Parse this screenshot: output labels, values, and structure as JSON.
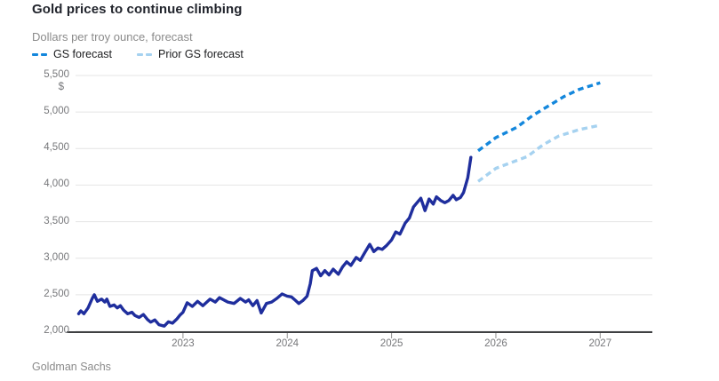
{
  "header": {
    "title": "Gold prices to continue climbing",
    "subtitle": "Dollars per troy ounce, forecast"
  },
  "legend": [
    {
      "label": "GS forecast",
      "color": "#1487dc"
    },
    {
      "label": "Prior GS forecast",
      "color": "#a6d2f0"
    }
  ],
  "footer": {
    "source": "Goldman Sachs"
  },
  "colors": {
    "historical_line": "#1f2e9d",
    "gs_forecast_line": "#1487dc",
    "prior_forecast_line": "#a6d2f0",
    "gridline": "#e4e4e4",
    "axis_line": "#3f4042",
    "axis_text": "#76777a"
  },
  "chart_data": {
    "type": "line",
    "title": "Gold prices to continue climbing",
    "subtitle": "Dollars per troy ounce, forecast",
    "unit_label": "$",
    "xlabel": "",
    "ylabel": "Dollars per troy ounce",
    "ylim": [
      2000,
      5500
    ],
    "xlim": [
      2021.97,
      2027.5
    ],
    "grid": "horizontal",
    "legend_position": "top-left",
    "y_ticks": [
      {
        "value": 5500,
        "label": "5,500"
      },
      {
        "value": 5000,
        "label": "5,000"
      },
      {
        "value": 4500,
        "label": "4,500"
      },
      {
        "value": 4000,
        "label": "4,000"
      },
      {
        "value": 3500,
        "label": "3,500"
      },
      {
        "value": 3000,
        "label": "3,000"
      },
      {
        "value": 2500,
        "label": "2,500"
      },
      {
        "value": 2000,
        "label": "2,000"
      }
    ],
    "x_ticks": [
      {
        "value": 2023,
        "label": "2023"
      },
      {
        "value": 2024,
        "label": "2024"
      },
      {
        "value": 2025,
        "label": "2025"
      },
      {
        "value": 2026,
        "label": "2026"
      },
      {
        "value": 2027,
        "label": "2027"
      }
    ],
    "series": [
      {
        "name": "Gold price",
        "style": "solid",
        "color": "#1f2e9d",
        "points": [
          [
            2022.0,
            2240
          ],
          [
            2022.02,
            2280
          ],
          [
            2022.05,
            2240
          ],
          [
            2022.09,
            2320
          ],
          [
            2022.13,
            2450
          ],
          [
            2022.15,
            2500
          ],
          [
            2022.18,
            2410
          ],
          [
            2022.22,
            2440
          ],
          [
            2022.25,
            2400
          ],
          [
            2022.27,
            2440
          ],
          [
            2022.3,
            2340
          ],
          [
            2022.34,
            2360
          ],
          [
            2022.37,
            2320
          ],
          [
            2022.4,
            2350
          ],
          [
            2022.43,
            2290
          ],
          [
            2022.47,
            2240
          ],
          [
            2022.51,
            2260
          ],
          [
            2022.54,
            2215
          ],
          [
            2022.58,
            2190
          ],
          [
            2022.62,
            2230
          ],
          [
            2022.66,
            2160
          ],
          [
            2022.69,
            2125
          ],
          [
            2022.73,
            2155
          ],
          [
            2022.77,
            2090
          ],
          [
            2022.82,
            2070
          ],
          [
            2022.86,
            2130
          ],
          [
            2022.9,
            2110
          ],
          [
            2022.94,
            2165
          ],
          [
            2022.97,
            2220
          ],
          [
            2023.0,
            2260
          ],
          [
            2023.04,
            2390
          ],
          [
            2023.09,
            2340
          ],
          [
            2023.14,
            2410
          ],
          [
            2023.19,
            2350
          ],
          [
            2023.26,
            2440
          ],
          [
            2023.31,
            2400
          ],
          [
            2023.35,
            2460
          ],
          [
            2023.43,
            2400
          ],
          [
            2023.49,
            2380
          ],
          [
            2023.55,
            2450
          ],
          [
            2023.6,
            2400
          ],
          [
            2023.63,
            2430
          ],
          [
            2023.67,
            2350
          ],
          [
            2023.71,
            2420
          ],
          [
            2023.75,
            2250
          ],
          [
            2023.8,
            2380
          ],
          [
            2023.85,
            2400
          ],
          [
            2023.9,
            2450
          ],
          [
            2023.95,
            2510
          ],
          [
            2024.0,
            2480
          ],
          [
            2024.04,
            2470
          ],
          [
            2024.08,
            2420
          ],
          [
            2024.11,
            2380
          ],
          [
            2024.15,
            2420
          ],
          [
            2024.19,
            2480
          ],
          [
            2024.22,
            2650
          ],
          [
            2024.24,
            2830
          ],
          [
            2024.28,
            2860
          ],
          [
            2024.32,
            2760
          ],
          [
            2024.36,
            2830
          ],
          [
            2024.4,
            2770
          ],
          [
            2024.44,
            2850
          ],
          [
            2024.49,
            2780
          ],
          [
            2024.53,
            2880
          ],
          [
            2024.57,
            2950
          ],
          [
            2024.61,
            2900
          ],
          [
            2024.66,
            3010
          ],
          [
            2024.7,
            2970
          ],
          [
            2024.74,
            3070
          ],
          [
            2024.79,
            3190
          ],
          [
            2024.83,
            3090
          ],
          [
            2024.87,
            3140
          ],
          [
            2024.91,
            3120
          ],
          [
            2024.95,
            3170
          ],
          [
            2025.0,
            3250
          ],
          [
            2025.04,
            3360
          ],
          [
            2025.08,
            3330
          ],
          [
            2025.13,
            3480
          ],
          [
            2025.17,
            3550
          ],
          [
            2025.21,
            3700
          ],
          [
            2025.25,
            3770
          ],
          [
            2025.28,
            3820
          ],
          [
            2025.32,
            3650
          ],
          [
            2025.36,
            3810
          ],
          [
            2025.4,
            3740
          ],
          [
            2025.43,
            3840
          ],
          [
            2025.47,
            3790
          ],
          [
            2025.51,
            3760
          ],
          [
            2025.55,
            3790
          ],
          [
            2025.59,
            3860
          ],
          [
            2025.62,
            3800
          ],
          [
            2025.66,
            3830
          ],
          [
            2025.69,
            3900
          ],
          [
            2025.73,
            4100
          ],
          [
            2025.76,
            4380
          ]
        ]
      },
      {
        "name": "GS forecast",
        "style": "dashed",
        "color": "#1487dc",
        "points": [
          [
            2025.83,
            4470
          ],
          [
            2026.0,
            4650
          ],
          [
            2026.2,
            4790
          ],
          [
            2026.35,
            4950
          ],
          [
            2026.5,
            5080
          ],
          [
            2026.65,
            5210
          ],
          [
            2026.8,
            5310
          ],
          [
            2027.0,
            5400
          ]
        ]
      },
      {
        "name": "Prior GS forecast",
        "style": "dashed",
        "color": "#a6d2f0",
        "points": [
          [
            2025.83,
            4050
          ],
          [
            2026.0,
            4230
          ],
          [
            2026.15,
            4310
          ],
          [
            2026.3,
            4390
          ],
          [
            2026.45,
            4550
          ],
          [
            2026.6,
            4670
          ],
          [
            2026.8,
            4760
          ],
          [
            2027.0,
            4820
          ]
        ]
      }
    ]
  }
}
